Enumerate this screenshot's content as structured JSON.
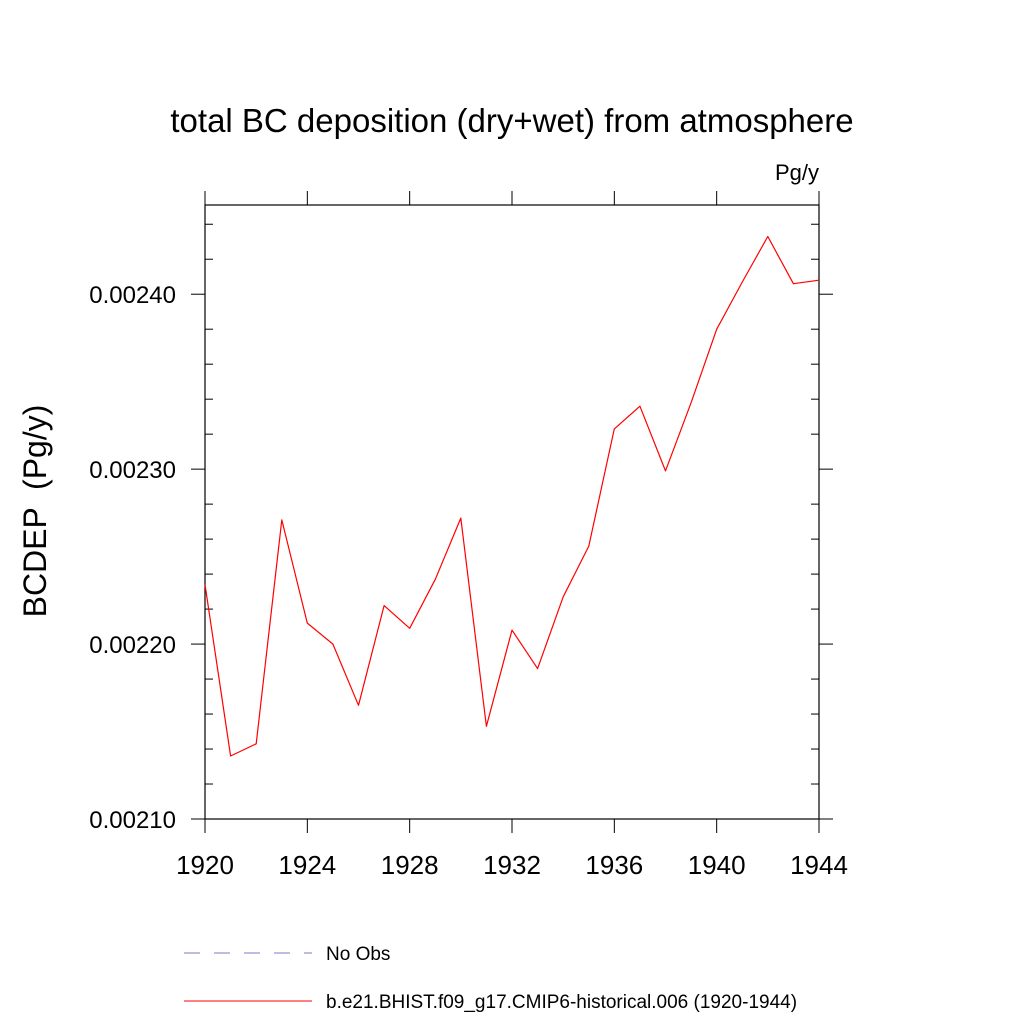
{
  "chart_data": {
    "type": "line",
    "title": "total BC deposition (dry+wet) from atmosphere",
    "units_label": "Pg/y",
    "ylabel": "BCDEP  (Pg/y)",
    "xlabel": "",
    "xlim": [
      1920,
      1944
    ],
    "ylim": [
      0.0021,
      0.002451
    ],
    "x_ticks": [
      1920,
      1924,
      1928,
      1932,
      1936,
      1940,
      1944
    ],
    "x_tick_labels": [
      "1920",
      "1924",
      "1928",
      "1932",
      "1936",
      "1940",
      "1944"
    ],
    "y_ticks": [
      0.0021,
      0.0022,
      0.0023,
      0.0024
    ],
    "y_tick_labels": [
      "0.00210",
      "0.00220",
      "0.00230",
      "0.00240"
    ],
    "grid": false,
    "legend_position": "bottom",
    "series": [
      {
        "name": "No Obs",
        "color": "#7b7bc8",
        "style": "dashed",
        "x": [],
        "y": []
      },
      {
        "name": "b.e21.BHIST.f09_g17.CMIP6-historical.006 (1920-1944)",
        "color": "#ff0000",
        "style": "solid",
        "x": [
          1920,
          1921,
          1922,
          1923,
          1924,
          1925,
          1926,
          1927,
          1928,
          1929,
          1930,
          1931,
          1932,
          1933,
          1934,
          1935,
          1936,
          1937,
          1938,
          1939,
          1940,
          1941,
          1942,
          1943,
          1944
        ],
        "y": [
          0.002234,
          0.002136,
          0.002143,
          0.002271,
          0.002212,
          0.0022,
          0.002165,
          0.002222,
          0.002209,
          0.002237,
          0.002272,
          0.002153,
          0.002208,
          0.002186,
          0.002227,
          0.002256,
          0.002323,
          0.002336,
          0.002299,
          0.002338,
          0.00238,
          0.002407,
          0.002433,
          0.002406,
          0.002408
        ]
      }
    ]
  }
}
